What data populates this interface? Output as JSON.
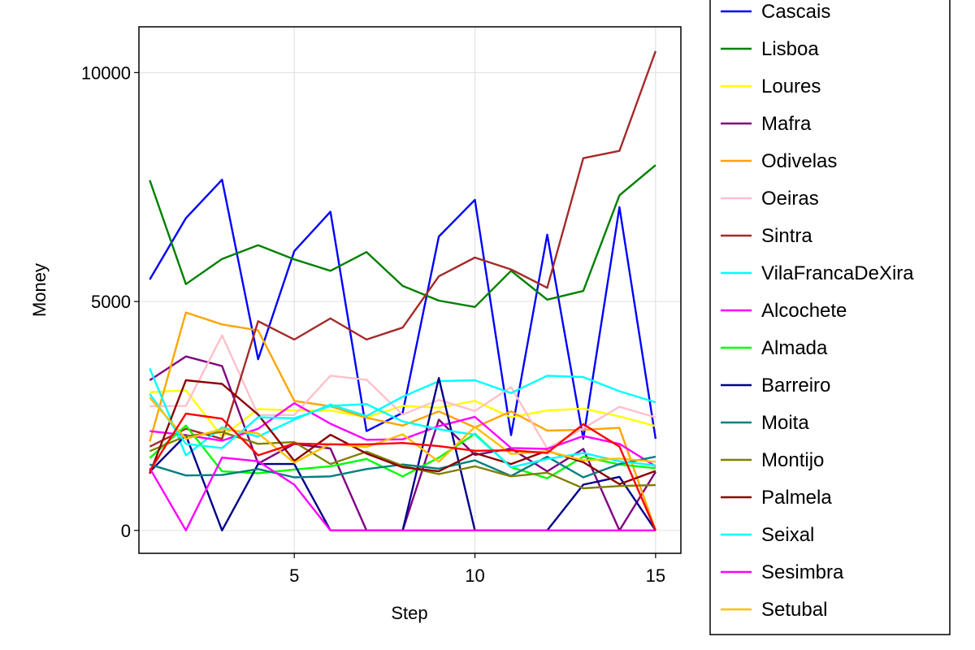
{
  "chart_data": {
    "type": "line",
    "title": "",
    "xlabel": "Step",
    "ylabel": "Money",
    "xlim": [
      0.7,
      15.7
    ],
    "ylim": [
      -500,
      11000
    ],
    "x_ticks": [
      5,
      10,
      15
    ],
    "y_ticks": [
      0,
      5000,
      10000
    ],
    "grid": true,
    "legend": "right-outside",
    "x": [
      1,
      2,
      3,
      4,
      5,
      6,
      7,
      8,
      9,
      10,
      11,
      12,
      13,
      14,
      15
    ],
    "series": [
      {
        "name": "Cascais",
        "color": "#0000ff",
        "values": [
          5480,
          6820,
          7660,
          3740,
          6100,
          6960,
          2170,
          2570,
          6420,
          7220,
          2080,
          6460,
          2000,
          7060,
          2000
        ]
      },
      {
        "name": "Lisboa",
        "color": "#008000",
        "values": [
          7650,
          5380,
          5930,
          6230,
          5920,
          5670,
          6080,
          5340,
          5020,
          4880,
          5670,
          5040,
          5230,
          7320,
          7980
        ]
      },
      {
        "name": "Loures",
        "color": "#ffff00",
        "values": [
          3020,
          3060,
          2050,
          2650,
          2620,
          2620,
          2470,
          2720,
          2680,
          2830,
          2470,
          2620,
          2660,
          2490,
          2280
        ]
      },
      {
        "name": "Mafra",
        "color": "#800080",
        "values": [
          3280,
          3800,
          3590,
          1460,
          1890,
          1790,
          0,
          0,
          2420,
          1650,
          1790,
          1290,
          1780,
          0,
          1280
        ]
      },
      {
        "name": "Odivelas",
        "color": "#ffa500",
        "values": [
          1940,
          4760,
          4500,
          4370,
          2830,
          2710,
          2460,
          2290,
          2600,
          2250,
          2600,
          2180,
          2200,
          2240,
          0
        ]
      },
      {
        "name": "Oeiras",
        "color": "#ffc0cb",
        "values": [
          2710,
          2720,
          4260,
          2520,
          2520,
          3380,
          3290,
          2530,
          2850,
          2610,
          3130,
          1790,
          2230,
          2700,
          2470
        ]
      },
      {
        "name": "Sintra",
        "color": "#a52a2a",
        "values": [
          1830,
          2220,
          2000,
          4570,
          4170,
          4630,
          4170,
          4430,
          5550,
          5960,
          5700,
          5300,
          8130,
          8290,
          10470
        ]
      },
      {
        "name": "VilaFrancaDeXira",
        "color": "#00ffff",
        "values": [
          3540,
          1640,
          2250,
          2050,
          2420,
          2750,
          2500,
          2920,
          3260,
          3280,
          3000,
          3380,
          3350,
          3040,
          2800
        ]
      },
      {
        "name": "Alcochete",
        "color": "#ff00ff",
        "values": [
          2170,
          2080,
          1960,
          2220,
          2780,
          2330,
          1980,
          1990,
          2280,
          2480,
          1800,
          1780,
          2060,
          1890,
          1400
        ]
      },
      {
        "name": "Almada",
        "color": "#00ff00",
        "values": [
          1580,
          2290,
          1290,
          1250,
          1330,
          1400,
          1560,
          1180,
          1590,
          2110,
          1380,
          1140,
          1610,
          1440,
          1360
        ]
      },
      {
        "name": "Barreiro",
        "color": "#00008b",
        "values": [
          1280,
          2080,
          0,
          1450,
          1450,
          0,
          0,
          0,
          3330,
          0,
          0,
          0,
          1000,
          1170,
          0
        ]
      },
      {
        "name": "Moita",
        "color": "#008080",
        "values": [
          1440,
          1200,
          1210,
          1340,
          1160,
          1180,
          1340,
          1440,
          1350,
          1530,
          1190,
          1610,
          1160,
          1450,
          1610
        ]
      },
      {
        "name": "Montijo",
        "color": "#808000",
        "values": [
          1730,
          2060,
          2150,
          1890,
          1930,
          1450,
          1720,
          1410,
          1230,
          1400,
          1180,
          1260,
          920,
          970,
          990
        ]
      },
      {
        "name": "Palmela",
        "color": "#8b0000",
        "values": [
          1240,
          3280,
          3200,
          2530,
          1520,
          2090,
          1680,
          1380,
          1290,
          1690,
          1450,
          1740,
          1490,
          1010,
          1300
        ]
      },
      {
        "name": "Seixal",
        "color": "#00ffff",
        "values": [
          2980,
          1890,
          1800,
          2470,
          2450,
          2720,
          2760,
          2380,
          2210,
          2090,
          1380,
          1560,
          1690,
          1510,
          1420
        ]
      },
      {
        "name": "Sesimbra",
        "color": "#ff00ff",
        "values": [
          1360,
          0,
          1590,
          1510,
          1000,
          0,
          0,
          0,
          0,
          0,
          0,
          0,
          0,
          0,
          0
        ]
      },
      {
        "name": "Setubal",
        "color": "#ffc000",
        "values": [
          2900,
          2000,
          2210,
          2120,
          1480,
          1890,
          1820,
          2100,
          1500,
          2260,
          1670,
          1730,
          1530,
          1570,
          1500
        ]
      },
      {
        "name": "",
        "color": "#ff0000",
        "values": [
          1300,
          2550,
          2440,
          1640,
          1900,
          1880,
          1880,
          1910,
          1840,
          1740,
          1750,
          1690,
          2320,
          1830,
          0
        ]
      }
    ]
  }
}
